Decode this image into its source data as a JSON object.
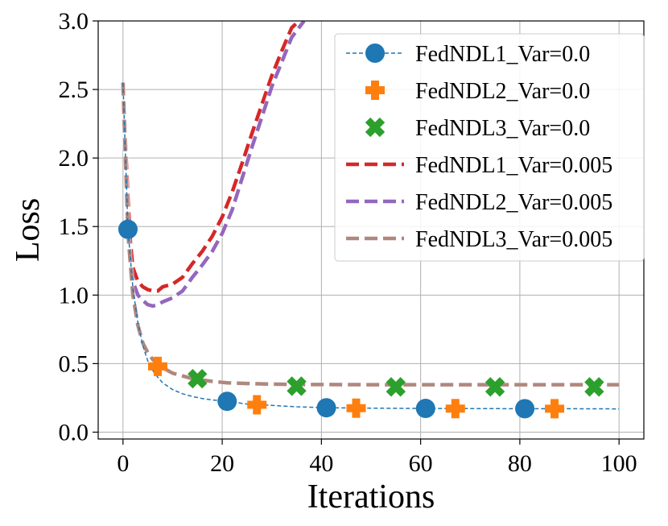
{
  "chart_data": {
    "type": "line",
    "title": "",
    "xlabel": "Iterations",
    "ylabel": "Loss",
    "xlim": [
      -5,
      105
    ],
    "ylim": [
      -0.05,
      3.0
    ],
    "xticks": [
      0,
      20,
      40,
      60,
      80,
      100
    ],
    "xtick_labels": [
      "0",
      "20",
      "40",
      "60",
      "80",
      "100"
    ],
    "yticks": [
      0.0,
      0.5,
      1.0,
      1.5,
      2.0,
      2.5,
      3.0
    ],
    "ytick_labels": [
      "0.0",
      "0.5",
      "1.0",
      "1.5",
      "2.0",
      "2.5",
      "3.0"
    ],
    "grid": true,
    "legend_position": "top-right",
    "series": [
      {
        "name": "FedNDL1_Var=0.0",
        "color": "#1f77b4",
        "style": "dashed-thin",
        "marker": "circle",
        "x": [
          0,
          1,
          2,
          3,
          4,
          5,
          6,
          7,
          8,
          10,
          12,
          14,
          16,
          18,
          21,
          25,
          30,
          35,
          41,
          50,
          61,
          70,
          81,
          90,
          100
        ],
        "y": [
          2.55,
          1.48,
          1.05,
          0.8,
          0.63,
          0.52,
          0.45,
          0.4,
          0.36,
          0.31,
          0.28,
          0.26,
          0.245,
          0.235,
          0.225,
          0.205,
          0.195,
          0.185,
          0.178,
          0.175,
          0.173,
          0.172,
          0.171,
          0.171,
          0.17
        ],
        "markers_x": [
          1,
          21,
          41,
          61,
          81
        ],
        "markers_y": [
          1.48,
          0.225,
          0.178,
          0.173,
          0.171
        ]
      },
      {
        "name": "FedNDL2_Var=0.0",
        "color": "#ff7f0e",
        "style": "none",
        "marker": "plus",
        "x": [],
        "y": [],
        "markers_x": [
          7,
          27,
          47,
          67,
          87
        ],
        "markers_y": [
          0.48,
          0.2,
          0.175,
          0.172,
          0.171
        ]
      },
      {
        "name": "FedNDL3_Var=0.0",
        "color": "#2ca02c",
        "style": "none",
        "marker": "x",
        "x": [],
        "y": [],
        "markers_x": [
          15,
          35,
          55,
          75,
          95
        ],
        "markers_y": [
          0.39,
          0.335,
          0.33,
          0.33,
          0.33
        ]
      },
      {
        "name": "FedNDL1_Var=0.005",
        "color": "#d62728",
        "style": "dashed-thick",
        "marker": "none",
        "x": [
          0,
          0.5,
          1,
          1.5,
          2,
          3,
          4,
          5,
          6,
          7,
          8,
          10,
          12,
          14,
          16,
          18,
          20,
          22,
          24,
          26,
          28,
          30,
          32,
          34,
          35.5
        ],
        "y": [
          2.55,
          2.1,
          1.7,
          1.38,
          1.2,
          1.1,
          1.06,
          1.04,
          1.03,
          1.03,
          1.06,
          1.08,
          1.13,
          1.23,
          1.32,
          1.43,
          1.57,
          1.75,
          1.96,
          2.18,
          2.39,
          2.6,
          2.78,
          2.95,
          3.0
        ]
      },
      {
        "name": "FedNDL2_Var=0.005",
        "color": "#9467bd",
        "style": "dashed-thick",
        "marker": "none",
        "x": [
          0,
          0.5,
          1,
          1.5,
          2,
          3,
          4,
          5,
          6,
          7,
          8,
          10,
          12,
          14,
          16,
          18,
          20,
          22,
          24,
          26,
          28,
          30,
          32,
          34,
          36.5
        ],
        "y": [
          2.55,
          2.0,
          1.55,
          1.25,
          1.1,
          1.0,
          0.96,
          0.93,
          0.92,
          0.93,
          0.95,
          0.98,
          1.03,
          1.13,
          1.22,
          1.32,
          1.45,
          1.62,
          1.85,
          2.08,
          2.3,
          2.52,
          2.7,
          2.88,
          3.0
        ]
      },
      {
        "name": "FedNDL3_Var=0.005",
        "color": "#b0877e",
        "style": "dashed-thick",
        "marker": "none",
        "x": [
          0,
          1,
          2,
          3,
          4,
          5,
          6,
          7,
          8,
          10,
          12,
          14,
          16,
          18,
          21,
          25,
          30,
          35,
          40,
          50,
          60,
          70,
          80,
          90,
          100
        ],
        "y": [
          2.55,
          1.45,
          1.0,
          0.78,
          0.65,
          0.58,
          0.53,
          0.5,
          0.47,
          0.43,
          0.41,
          0.39,
          0.38,
          0.37,
          0.36,
          0.355,
          0.35,
          0.348,
          0.347,
          0.346,
          0.346,
          0.346,
          0.346,
          0.346,
          0.346
        ]
      }
    ]
  }
}
